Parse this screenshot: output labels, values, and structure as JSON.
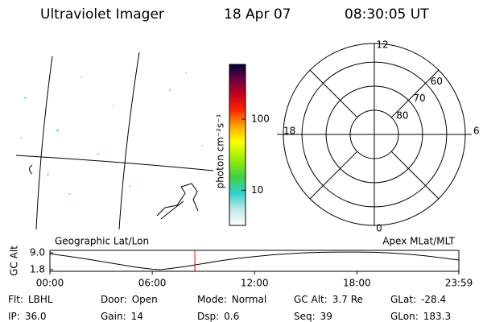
{
  "header": {
    "instrument": "Ultraviolet Imager",
    "date": "18 Apr 07",
    "time": "08:30:05 UT"
  },
  "colorbar": {
    "label": "photon cm⁻²s⁻¹",
    "scale": "log",
    "lim": [
      3.2,
      590
    ],
    "ticks": [
      10,
      100
    ]
  },
  "polar": {
    "mlt_labels": [
      "12",
      "6",
      "0",
      "18"
    ],
    "rings": [
      80,
      70,
      60
    ],
    "rlim": [
      90,
      52.3
    ]
  },
  "map_labels": {
    "left": "Geographic Lat/Lon",
    "right": "Apex MLat/MLT"
  },
  "altitude": {
    "ylabel": "GC Alt",
    "ylim": [
      1.8,
      9.0
    ],
    "yticks": [
      {
        "value": 9,
        "label": "9.0"
      },
      {
        "value": 1.8,
        "label": "1.8"
      }
    ],
    "xlim": [
      0,
      23.98
    ],
    "xticks": [
      {
        "value": 0,
        "label": "00:00"
      },
      {
        "value": 6,
        "label": "06:00"
      },
      {
        "value": 12,
        "label": "12:00"
      },
      {
        "value": 18,
        "label": "18:00"
      },
      {
        "value": 23.98,
        "label": "23:59"
      }
    ],
    "x": [
      0,
      1,
      2,
      3,
      4,
      5,
      6,
      6.5,
      7,
      8,
      9,
      10,
      11,
      12,
      13,
      14,
      15,
      16,
      17,
      18,
      19,
      20,
      21,
      22,
      23,
      23.98
    ],
    "values": [
      8.6,
      7.6,
      6.5,
      5.3,
      4.1,
      2.9,
      2.0,
      1.8,
      2.2,
      3.2,
      4.4,
      5.6,
      6.6,
      7.4,
      8.1,
      8.6,
      9.0,
      9.2,
      9.3,
      9.3,
      9.2,
      8.9,
      8.4,
      7.7,
      6.8,
      5.9
    ],
    "marker_x": 8.5,
    "line_color": "#000000",
    "marker_color": "#ff0000"
  },
  "status": [
    [
      {
        "label": "Flt:",
        "value": "LBHL"
      },
      {
        "label": "Door:",
        "value": "Open"
      },
      {
        "label": "Mode:",
        "value": "Normal"
      },
      {
        "label": "GC Alt:",
        "value": "3.7 Re"
      },
      {
        "label": "GLat:",
        "value": "-28.4"
      }
    ],
    [
      {
        "label": "IP:",
        "value": "36.0"
      },
      {
        "label": "Gain:",
        "value": "14"
      },
      {
        "label": "Dsp:",
        "value": "0.6"
      },
      {
        "label": "Seq:",
        "value": "39"
      },
      {
        "label": "GLon:",
        "value": "183.3"
      }
    ]
  ]
}
